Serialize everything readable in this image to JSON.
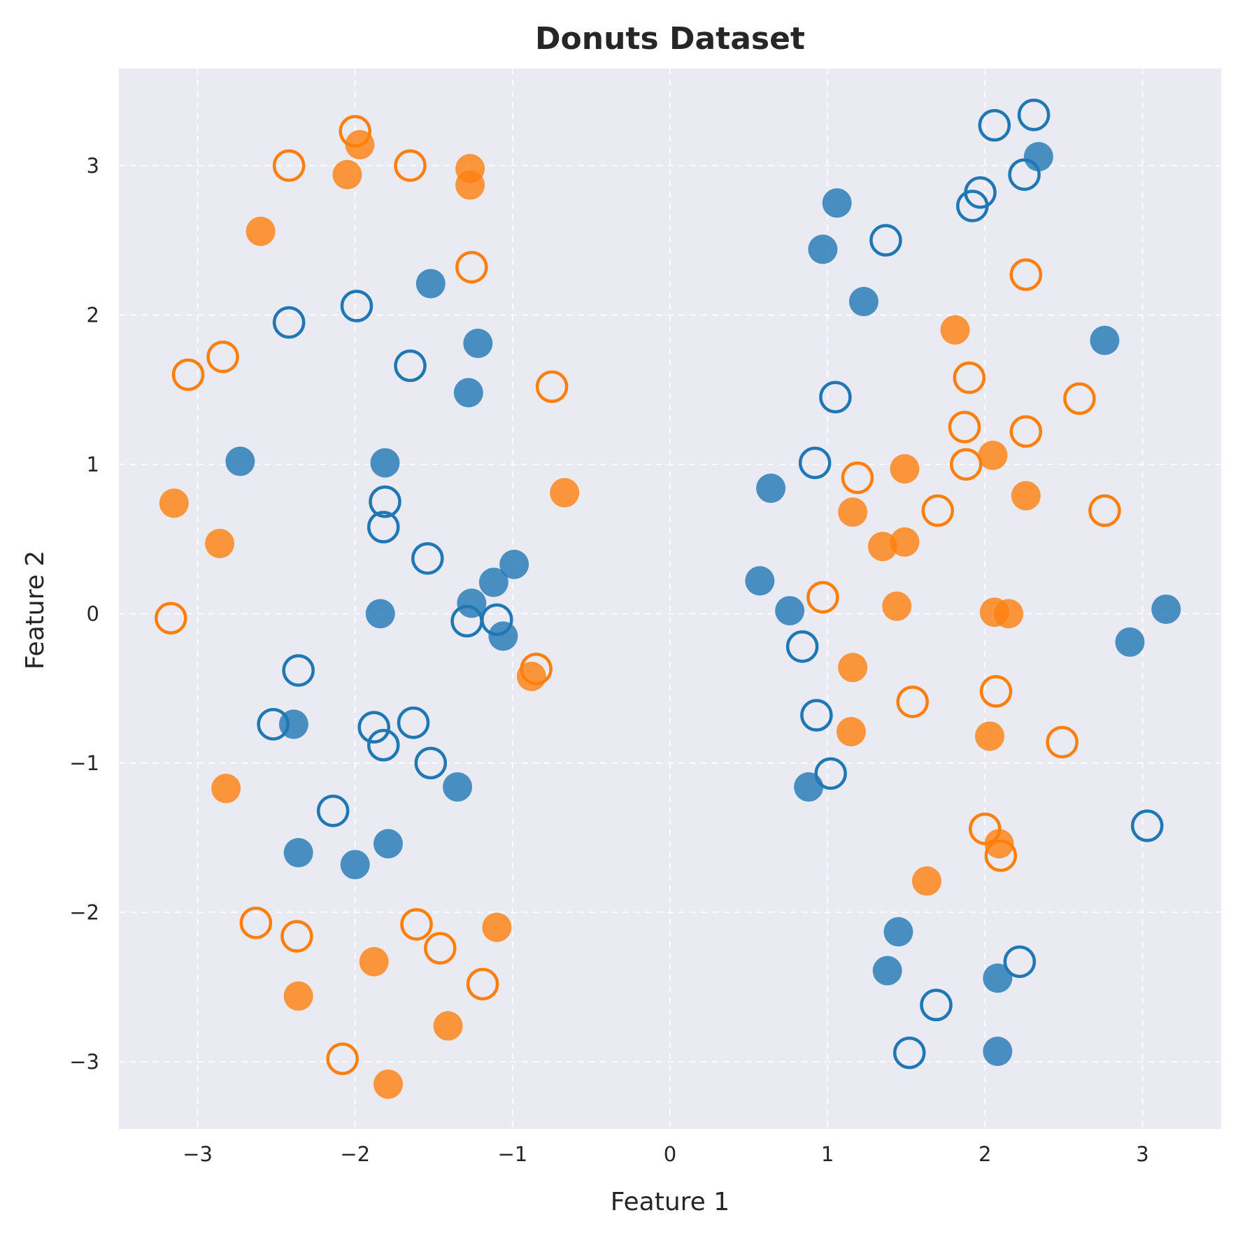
{
  "chart_data": {
    "type": "scatter",
    "title": "Donuts Dataset",
    "xlabel": "Feature 1",
    "ylabel": "Feature 2",
    "xlim": [
      -3.5,
      3.5
    ],
    "ylim": [
      -3.45,
      3.65
    ],
    "xticks": [
      -3,
      -2,
      -1,
      0,
      1,
      2,
      3
    ],
    "xtick_labels": [
      "−3",
      "−2",
      "−1",
      "0",
      "1",
      "2",
      "3"
    ],
    "yticks": [
      -3,
      -2,
      -1,
      0,
      1,
      2,
      3
    ],
    "ytick_labels": [
      "−3",
      "−2",
      "−1",
      "0",
      "1",
      "2",
      "3"
    ],
    "grid": true,
    "background": "#eaeaf2",
    "series": [
      {
        "color": "#1f77b4",
        "marker": "filled",
        "points": [
          [
            -1.52,
            2.21
          ],
          [
            -1.22,
            1.81
          ],
          [
            -1.28,
            1.48
          ],
          [
            -2.73,
            1.02
          ],
          [
            -1.81,
            1.01
          ],
          [
            -0.99,
            0.33
          ],
          [
            -1.12,
            0.21
          ],
          [
            -1.26,
            0.07
          ],
          [
            -1.84,
            0.0
          ],
          [
            -1.06,
            -0.15
          ],
          [
            -2.39,
            -0.74
          ],
          [
            -1.35,
            -1.16
          ],
          [
            -2.36,
            -1.6
          ],
          [
            -1.79,
            -1.54
          ],
          [
            -2.0,
            -1.68
          ],
          [
            1.06,
            2.75
          ],
          [
            0.97,
            2.44
          ],
          [
            1.23,
            2.09
          ],
          [
            2.34,
            3.06
          ],
          [
            2.76,
            1.83
          ],
          [
            0.64,
            0.84
          ],
          [
            0.57,
            0.22
          ],
          [
            0.76,
            0.02
          ],
          [
            3.15,
            0.03
          ],
          [
            2.92,
            -0.19
          ],
          [
            0.88,
            -1.16
          ],
          [
            1.45,
            -2.13
          ],
          [
            1.38,
            -2.39
          ],
          [
            2.08,
            -2.44
          ],
          [
            2.08,
            -2.93
          ]
        ]
      },
      {
        "color": "#1f77b4",
        "marker": "hollow",
        "points": [
          [
            -1.99,
            2.06
          ],
          [
            -2.42,
            1.95
          ],
          [
            -1.65,
            1.66
          ],
          [
            -1.81,
            0.75
          ],
          [
            -1.82,
            0.58
          ],
          [
            -1.54,
            0.37
          ],
          [
            -1.29,
            -0.05
          ],
          [
            -1.1,
            -0.04
          ],
          [
            -2.36,
            -0.38
          ],
          [
            -2.52,
            -0.74
          ],
          [
            -1.88,
            -0.76
          ],
          [
            -1.63,
            -0.73
          ],
          [
            -1.82,
            -0.88
          ],
          [
            -1.52,
            -1.0
          ],
          [
            -2.14,
            -1.32
          ],
          [
            2.31,
            3.34
          ],
          [
            2.06,
            3.27
          ],
          [
            2.25,
            2.94
          ],
          [
            1.97,
            2.82
          ],
          [
            1.92,
            2.73
          ],
          [
            1.37,
            2.5
          ],
          [
            1.05,
            1.45
          ],
          [
            0.92,
            1.01
          ],
          [
            0.84,
            -0.22
          ],
          [
            0.93,
            -0.68
          ],
          [
            1.02,
            -1.07
          ],
          [
            3.03,
            -1.42
          ],
          [
            2.22,
            -2.33
          ],
          [
            1.69,
            -2.62
          ],
          [
            1.52,
            -2.94
          ]
        ]
      },
      {
        "color": "#ff7f0e",
        "marker": "filled",
        "points": [
          [
            -1.97,
            3.14
          ],
          [
            -2.05,
            2.94
          ],
          [
            -1.27,
            2.98
          ],
          [
            -1.27,
            2.87
          ],
          [
            -2.6,
            2.56
          ],
          [
            -3.15,
            0.74
          ],
          [
            -2.86,
            0.47
          ],
          [
            -0.67,
            0.81
          ],
          [
            -0.88,
            -0.42
          ],
          [
            -2.82,
            -1.17
          ],
          [
            -1.1,
            -2.1
          ],
          [
            -1.88,
            -2.33
          ],
          [
            -2.36,
            -2.56
          ],
          [
            -1.41,
            -2.76
          ],
          [
            -1.79,
            -3.15
          ],
          [
            1.81,
            1.9
          ],
          [
            2.05,
            1.06
          ],
          [
            1.49,
            0.97
          ],
          [
            2.26,
            0.79
          ],
          [
            1.16,
            0.68
          ],
          [
            1.35,
            0.45
          ],
          [
            1.49,
            0.48
          ],
          [
            1.44,
            0.05
          ],
          [
            2.06,
            0.01
          ],
          [
            2.15,
            0.0
          ],
          [
            1.16,
            -0.36
          ],
          [
            1.15,
            -0.79
          ],
          [
            2.03,
            -0.82
          ],
          [
            2.09,
            -1.54
          ],
          [
            1.63,
            -1.79
          ]
        ]
      },
      {
        "color": "#ff7f0e",
        "marker": "hollow",
        "points": [
          [
            -2.0,
            3.23
          ],
          [
            -2.42,
            3.0
          ],
          [
            -1.65,
            3.0
          ],
          [
            -1.26,
            2.32
          ],
          [
            -3.06,
            1.6
          ],
          [
            -2.84,
            1.72
          ],
          [
            -0.75,
            1.52
          ],
          [
            -3.17,
            -0.03
          ],
          [
            -0.85,
            -0.37
          ],
          [
            -2.63,
            -2.07
          ],
          [
            -1.61,
            -2.08
          ],
          [
            -2.37,
            -2.16
          ],
          [
            -1.46,
            -2.24
          ],
          [
            -1.19,
            -2.48
          ],
          [
            -2.08,
            -2.98
          ],
          [
            2.26,
            2.27
          ],
          [
            1.9,
            1.58
          ],
          [
            2.6,
            1.44
          ],
          [
            1.87,
            1.25
          ],
          [
            2.26,
            1.22
          ],
          [
            1.88,
            1.0
          ],
          [
            1.19,
            0.91
          ],
          [
            1.7,
            0.69
          ],
          [
            2.76,
            0.69
          ],
          [
            0.97,
            0.11
          ],
          [
            1.54,
            -0.59
          ],
          [
            2.07,
            -0.52
          ],
          [
            2.49,
            -0.86
          ],
          [
            2.0,
            -1.44
          ],
          [
            2.1,
            -1.62
          ]
        ]
      }
    ]
  }
}
